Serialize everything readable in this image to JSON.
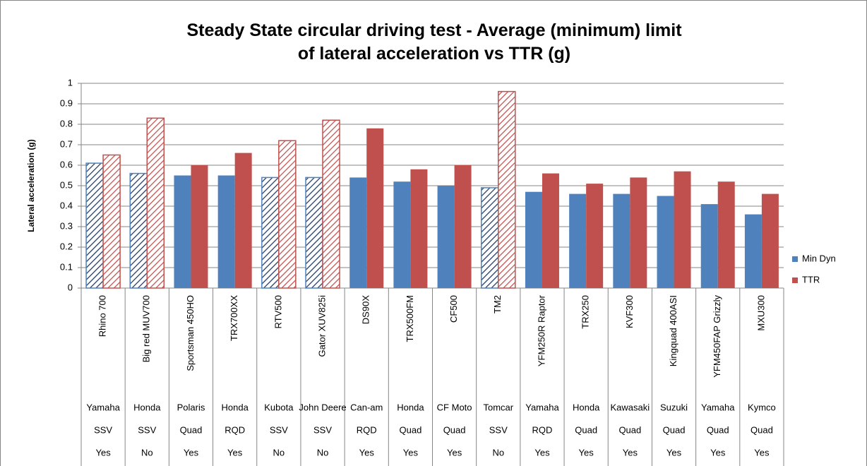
{
  "chart_data": {
    "type": "bar",
    "title": "Steady State circular driving test - Average (minimum) limit of lateral acceleration vs TTR (g)",
    "y_axis_label": "Lateral acceleration (g)",
    "categories": [
      "Rhino 700",
      "Big red MUV700",
      "Sportsman 450HO",
      "TRX700XX",
      "RTV500",
      "Gator XUV825i",
      "DS90X",
      "TRX500FM",
      "CF500",
      "TM2",
      "YFM250R Raptor",
      "TRX250",
      "KVF300",
      "Kingquad 400ASI",
      "YFM450FAP Grizzly",
      "MXU300"
    ],
    "category_groups": [
      [
        "Yamaha",
        "Honda",
        "Polaris",
        "Honda",
        "Kubota",
        "John Deere",
        "Can-am",
        "Honda",
        "CF Moto",
        "Tomcar",
        "Yamaha",
        "Honda",
        "Kawasaki",
        "Suzuki",
        "Yamaha",
        "Kymco"
      ],
      [
        "SSV",
        "SSV",
        "Quad",
        "RQD",
        "SSV",
        "SSV",
        "RQD",
        "Quad",
        "Quad",
        "SSV",
        "RQD",
        "Quad",
        "Quad",
        "Quad",
        "Quad",
        "Quad"
      ],
      [
        "Yes",
        "No",
        "Yes",
        "Yes",
        "No",
        "No",
        "Yes",
        "Yes",
        "Yes",
        "No",
        "Yes",
        "Yes",
        "Yes",
        "Yes",
        "Yes",
        "Yes"
      ]
    ],
    "hatched": [
      true,
      true,
      false,
      false,
      true,
      true,
      false,
      false,
      false,
      true,
      false,
      false,
      false,
      false,
      false,
      false
    ],
    "series": [
      {
        "name": "Min Dyn",
        "color": "#4f81bd",
        "hatch_color": "#1f3864",
        "values": [
          0.61,
          0.56,
          0.55,
          0.55,
          0.54,
          0.54,
          0.54,
          0.52,
          0.5,
          0.49,
          0.47,
          0.46,
          0.46,
          0.45,
          0.41,
          0.36
        ]
      },
      {
        "name": "TTR",
        "color": "#c0504d",
        "hatch_color": "#c0504d",
        "values": [
          0.65,
          0.83,
          0.6,
          0.66,
          0.72,
          0.82,
          0.78,
          0.58,
          0.6,
          0.96,
          0.56,
          0.51,
          0.54,
          0.57,
          0.52,
          0.46
        ]
      }
    ],
    "ylim": [
      0,
      1
    ],
    "yticks": [
      0,
      0.1,
      0.2,
      0.3,
      0.4,
      0.5,
      0.6,
      0.7,
      0.8,
      0.9,
      1
    ],
    "grid": true,
    "legend": "right"
  }
}
